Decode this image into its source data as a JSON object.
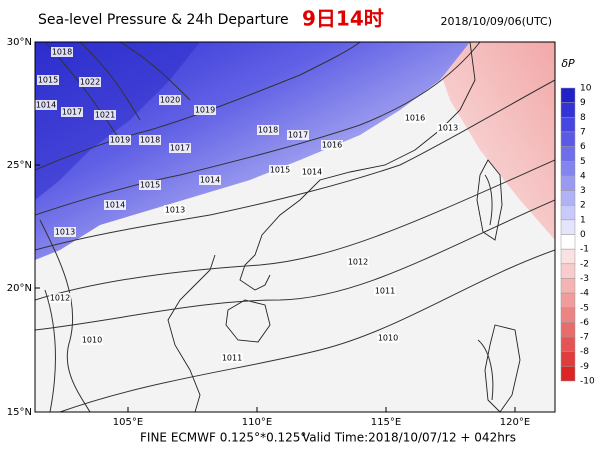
{
  "header": {
    "title": "Sea-level Pressure & 24h Departure",
    "local_time": "9日14时",
    "date": "2018/10/09/06(UTC)"
  },
  "map": {
    "lat_labels": [
      "30°N",
      "25°N",
      "20°N",
      "15°N"
    ],
    "lon_labels": [
      "105°E",
      "110°E",
      "115°E",
      "120°E"
    ],
    "contour_labels": [
      1018,
      1015,
      1014,
      1017,
      1022,
      1021,
      1019,
      1018,
      1017,
      1020,
      1019,
      1018,
      1017,
      1016,
      1015,
      1014,
      1013,
      1015,
      1014,
      1016,
      1013,
      1012,
      1011,
      1010,
      1011,
      1012,
      1010,
      1013,
      1014
    ]
  },
  "colorbar": {
    "label": "δP",
    "ticks": [
      10,
      9,
      8,
      7,
      6,
      5,
      4,
      3,
      2,
      1,
      0,
      -1,
      -2,
      -3,
      -4,
      -5,
      -6,
      -7,
      -8,
      -9,
      -10
    ],
    "colors": [
      "#2121c8",
      "#3333d6",
      "#4646e0",
      "#5a5ae6",
      "#6e6eea",
      "#8484ee",
      "#9a9af2",
      "#b2b2f6",
      "#cacafa",
      "#e4e4fc",
      "#ffffff",
      "#fbe2e2",
      "#f8cccc",
      "#f4b4b4",
      "#f09c9c",
      "#ec8484",
      "#e86c6c",
      "#e45454",
      "#e03c3c",
      "#dc2424"
    ]
  },
  "footer": {
    "model": "FINE ECMWF 0.125°*0.125°",
    "valid": "Valid Time:2018/10/07/12 + 042hrs"
  }
}
